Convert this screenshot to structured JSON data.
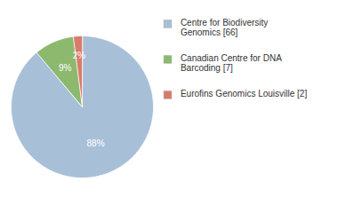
{
  "chart_data": {
    "type": "pie",
    "categories": [
      "Centre for Biodiversity\nGenomics [66]",
      "Canadian Centre for DNA\nBarcoding [7]",
      "Eurofins Genomics Louisville [2]"
    ],
    "values": [
      88,
      9,
      2
    ],
    "value_labels": [
      "88%",
      "9%",
      "2%"
    ],
    "colors": [
      "#a8bfd8",
      "#8db96e",
      "#d97b6a"
    ],
    "data_labels": true,
    "legend": "right"
  }
}
